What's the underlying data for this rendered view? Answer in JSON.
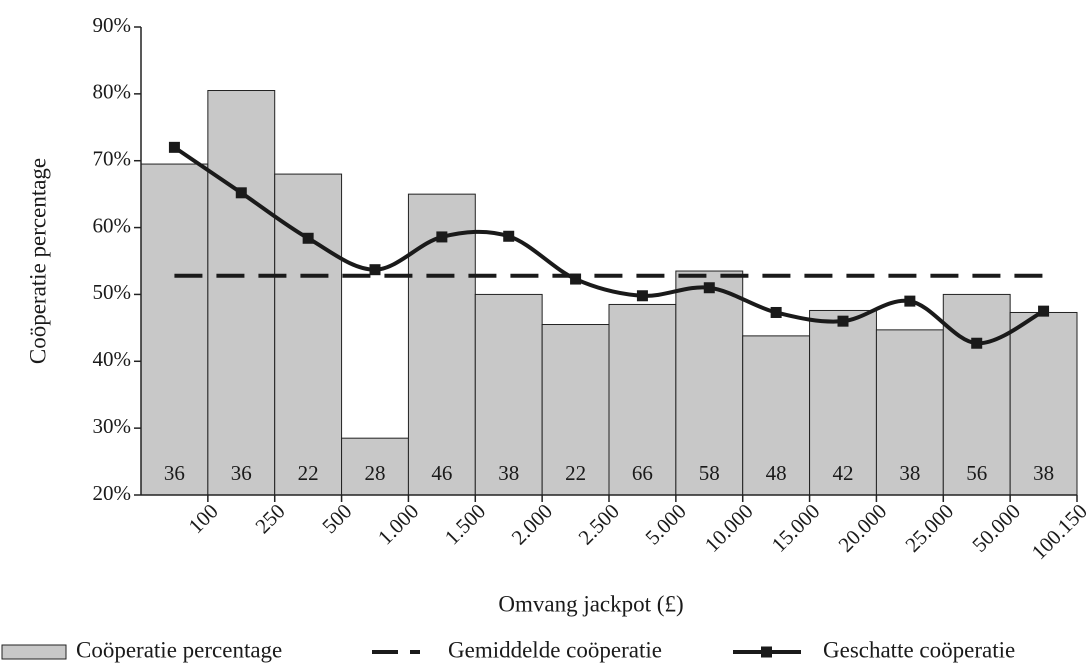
{
  "chart_data": {
    "type": "bar",
    "y_label": "Coöperatie percentage",
    "x_label": "Omvang jackpot (£)",
    "categories": [
      "100",
      "250",
      "500",
      "1.000",
      "1.500",
      "2.000",
      "2.500",
      "5.000",
      "10.000",
      "15.000",
      "20.000",
      "25.000",
      "50.000",
      "100.150"
    ],
    "counts": [
      36,
      36,
      22,
      28,
      46,
      38,
      22,
      66,
      58,
      48,
      42,
      38,
      56,
      38
    ],
    "series": [
      {
        "name": "Coöperatie percentage",
        "type": "bar",
        "color": "#c8c8c8",
        "values": [
          69.5,
          80.5,
          68,
          28.5,
          65,
          50,
          45.5,
          48.5,
          53.5,
          43.8,
          47.6,
          44.7,
          50,
          47.3
        ]
      },
      {
        "name": "Gemiddelde coöperatie",
        "type": "line",
        "dash": true,
        "color": "#1a1a1a",
        "values": [
          52.8,
          52.8,
          52.8,
          52.8,
          52.8,
          52.8,
          52.8,
          52.8,
          52.8,
          52.8,
          52.8,
          52.8,
          52.8,
          52.8
        ]
      },
      {
        "name": "Geschatte coöperatie",
        "type": "line",
        "smooth": true,
        "markers": true,
        "color": "#1a1a1a",
        "values": [
          72,
          65.2,
          58.4,
          53.7,
          58.6,
          58.7,
          52.3,
          49.8,
          51,
          47.3,
          46,
          49,
          42.7,
          47.5
        ]
      }
    ],
    "ylim": [
      20,
      90
    ],
    "yticks": [
      {
        "value": 20,
        "label": "20%"
      },
      {
        "value": 30,
        "label": "30%"
      },
      {
        "value": 40,
        "label": "40%"
      },
      {
        "value": 50,
        "label": "50%"
      },
      {
        "value": 60,
        "label": "60%"
      },
      {
        "value": 70,
        "label": "70%"
      },
      {
        "value": 80,
        "label": "80%"
      },
      {
        "value": 90,
        "label": "90%"
      }
    ]
  }
}
